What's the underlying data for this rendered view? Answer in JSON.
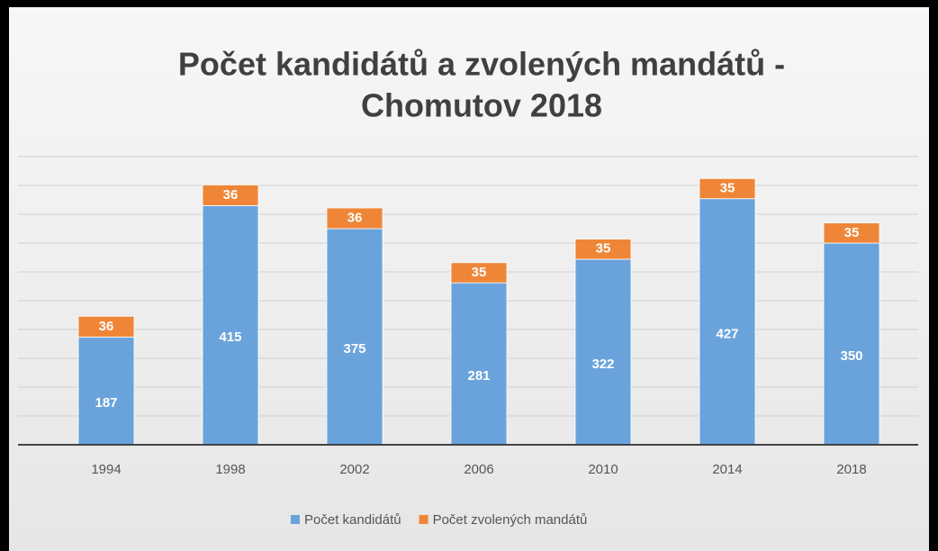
{
  "chart_data": {
    "type": "stacked_bar",
    "title": [
      "Počet kandidátů a zvolených mandátů -",
      "Chomutov 2018"
    ],
    "categories": [
      "1994",
      "1998",
      "2002",
      "2006",
      "2010",
      "2014",
      "2018"
    ],
    "series": [
      {
        "name": "Počet kandidátů",
        "color": "#6aa3dc",
        "values": [
          187,
          415,
          375,
          281,
          322,
          427,
          350
        ]
      },
      {
        "name": "Počet zvolených mandátů",
        "color": "#ef8637",
        "values": [
          36,
          36,
          36,
          35,
          35,
          35,
          35
        ]
      }
    ],
    "ylim": [
      0,
      500
    ],
    "yticks": [
      0,
      50,
      100,
      150,
      200,
      250,
      300,
      350,
      400,
      450,
      500
    ],
    "grid": true
  }
}
